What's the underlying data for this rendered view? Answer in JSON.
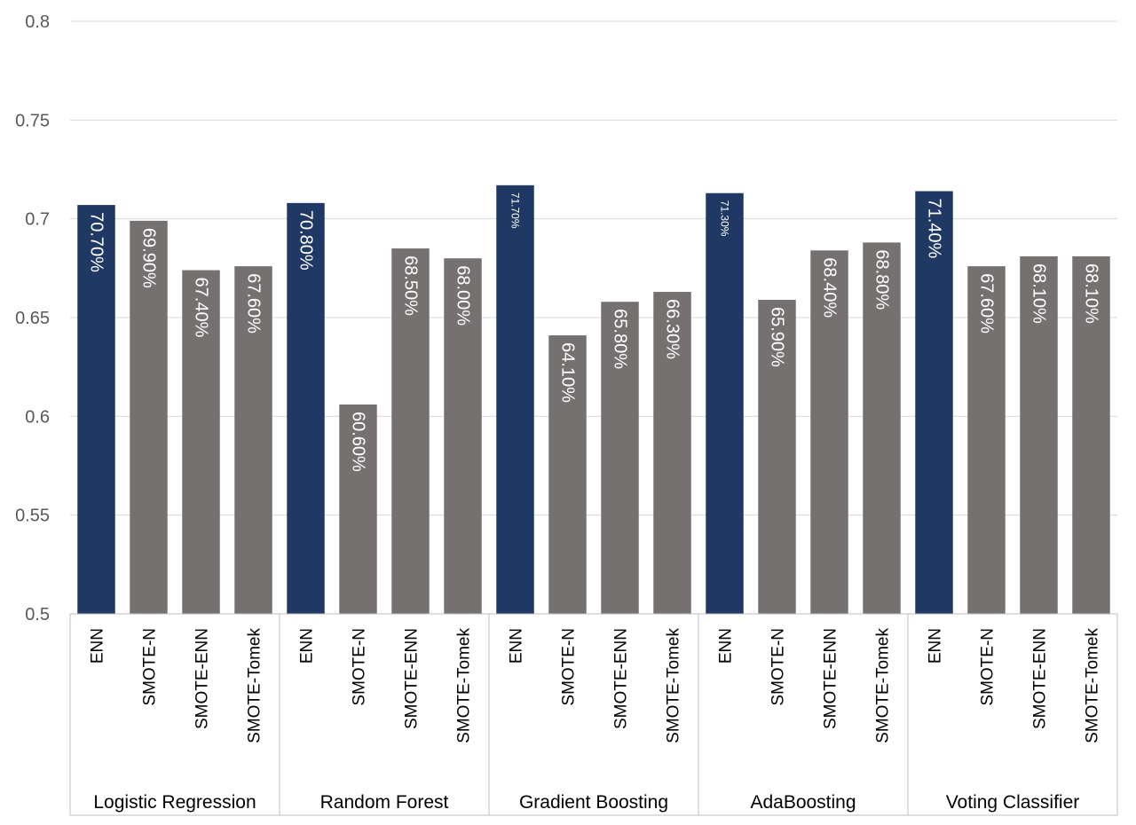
{
  "chart_data": {
    "type": "bar",
    "title": "",
    "xlabel": "",
    "ylabel": "",
    "ylim": [
      0.5,
      0.8
    ],
    "yticks": [
      "0.5",
      "0.55",
      "0.6",
      "0.65",
      "0.7",
      "0.75",
      "0.8"
    ],
    "grid": true,
    "legend": "none",
    "colors": {
      "highlight": "#203864",
      "default": "#767171",
      "grid": "#d9d9d9",
      "axis": "#bfbfbf"
    },
    "groups": [
      {
        "name": "Logistic Regression",
        "bars": [
          {
            "category": "ENN",
            "value": 0.707,
            "label": "70.70%",
            "highlight": true
          },
          {
            "category": "SMOTE-N",
            "value": 0.699,
            "label": "69.90%",
            "highlight": false
          },
          {
            "category": "SMOTE-ENN",
            "value": 0.674,
            "label": "67.40%",
            "highlight": false
          },
          {
            "category": "SMOTE-Tomek",
            "value": 0.676,
            "label": "67.60%",
            "highlight": false
          }
        ]
      },
      {
        "name": "Random Forest",
        "bars": [
          {
            "category": "ENN",
            "value": 0.708,
            "label": "70.80%",
            "highlight": true
          },
          {
            "category": "SMOTE-N",
            "value": 0.606,
            "label": "60.60%",
            "highlight": false
          },
          {
            "category": "SMOTE-ENN",
            "value": 0.685,
            "label": "68.50%",
            "highlight": false
          },
          {
            "category": "SMOTE-Tomek",
            "value": 0.68,
            "label": "68.00%",
            "highlight": false
          }
        ]
      },
      {
        "name": "Gradient Boosting",
        "bars": [
          {
            "category": "ENN",
            "value": 0.717,
            "label": "71.70%",
            "highlight": true,
            "small": true
          },
          {
            "category": "SMOTE-N",
            "value": 0.641,
            "label": "64.10%",
            "highlight": false
          },
          {
            "category": "SMOTE-ENN",
            "value": 0.658,
            "label": "65.80%",
            "highlight": false
          },
          {
            "category": "SMOTE-Tomek",
            "value": 0.663,
            "label": "66.30%",
            "highlight": false
          }
        ]
      },
      {
        "name": "AdaBoosting",
        "bars": [
          {
            "category": "ENN",
            "value": 0.713,
            "label": "71.30%",
            "highlight": true,
            "small": true
          },
          {
            "category": "SMOTE-N",
            "value": 0.659,
            "label": "65.90%",
            "highlight": false
          },
          {
            "category": "SMOTE-ENN",
            "value": 0.684,
            "label": "68.40%",
            "highlight": false
          },
          {
            "category": "SMOTE-Tomek",
            "value": 0.688,
            "label": "68.80%",
            "highlight": false
          }
        ]
      },
      {
        "name": "Voting Classifier",
        "bars": [
          {
            "category": "ENN",
            "value": 0.714,
            "label": "71.40%",
            "highlight": true
          },
          {
            "category": "SMOTE-N",
            "value": 0.676,
            "label": "67.60%",
            "highlight": false
          },
          {
            "category": "SMOTE-ENN",
            "value": 0.681,
            "label": "68.10%",
            "highlight": false
          },
          {
            "category": "SMOTE-Tomek",
            "value": 0.681,
            "label": "68.10%",
            "highlight": false
          }
        ]
      }
    ]
  }
}
